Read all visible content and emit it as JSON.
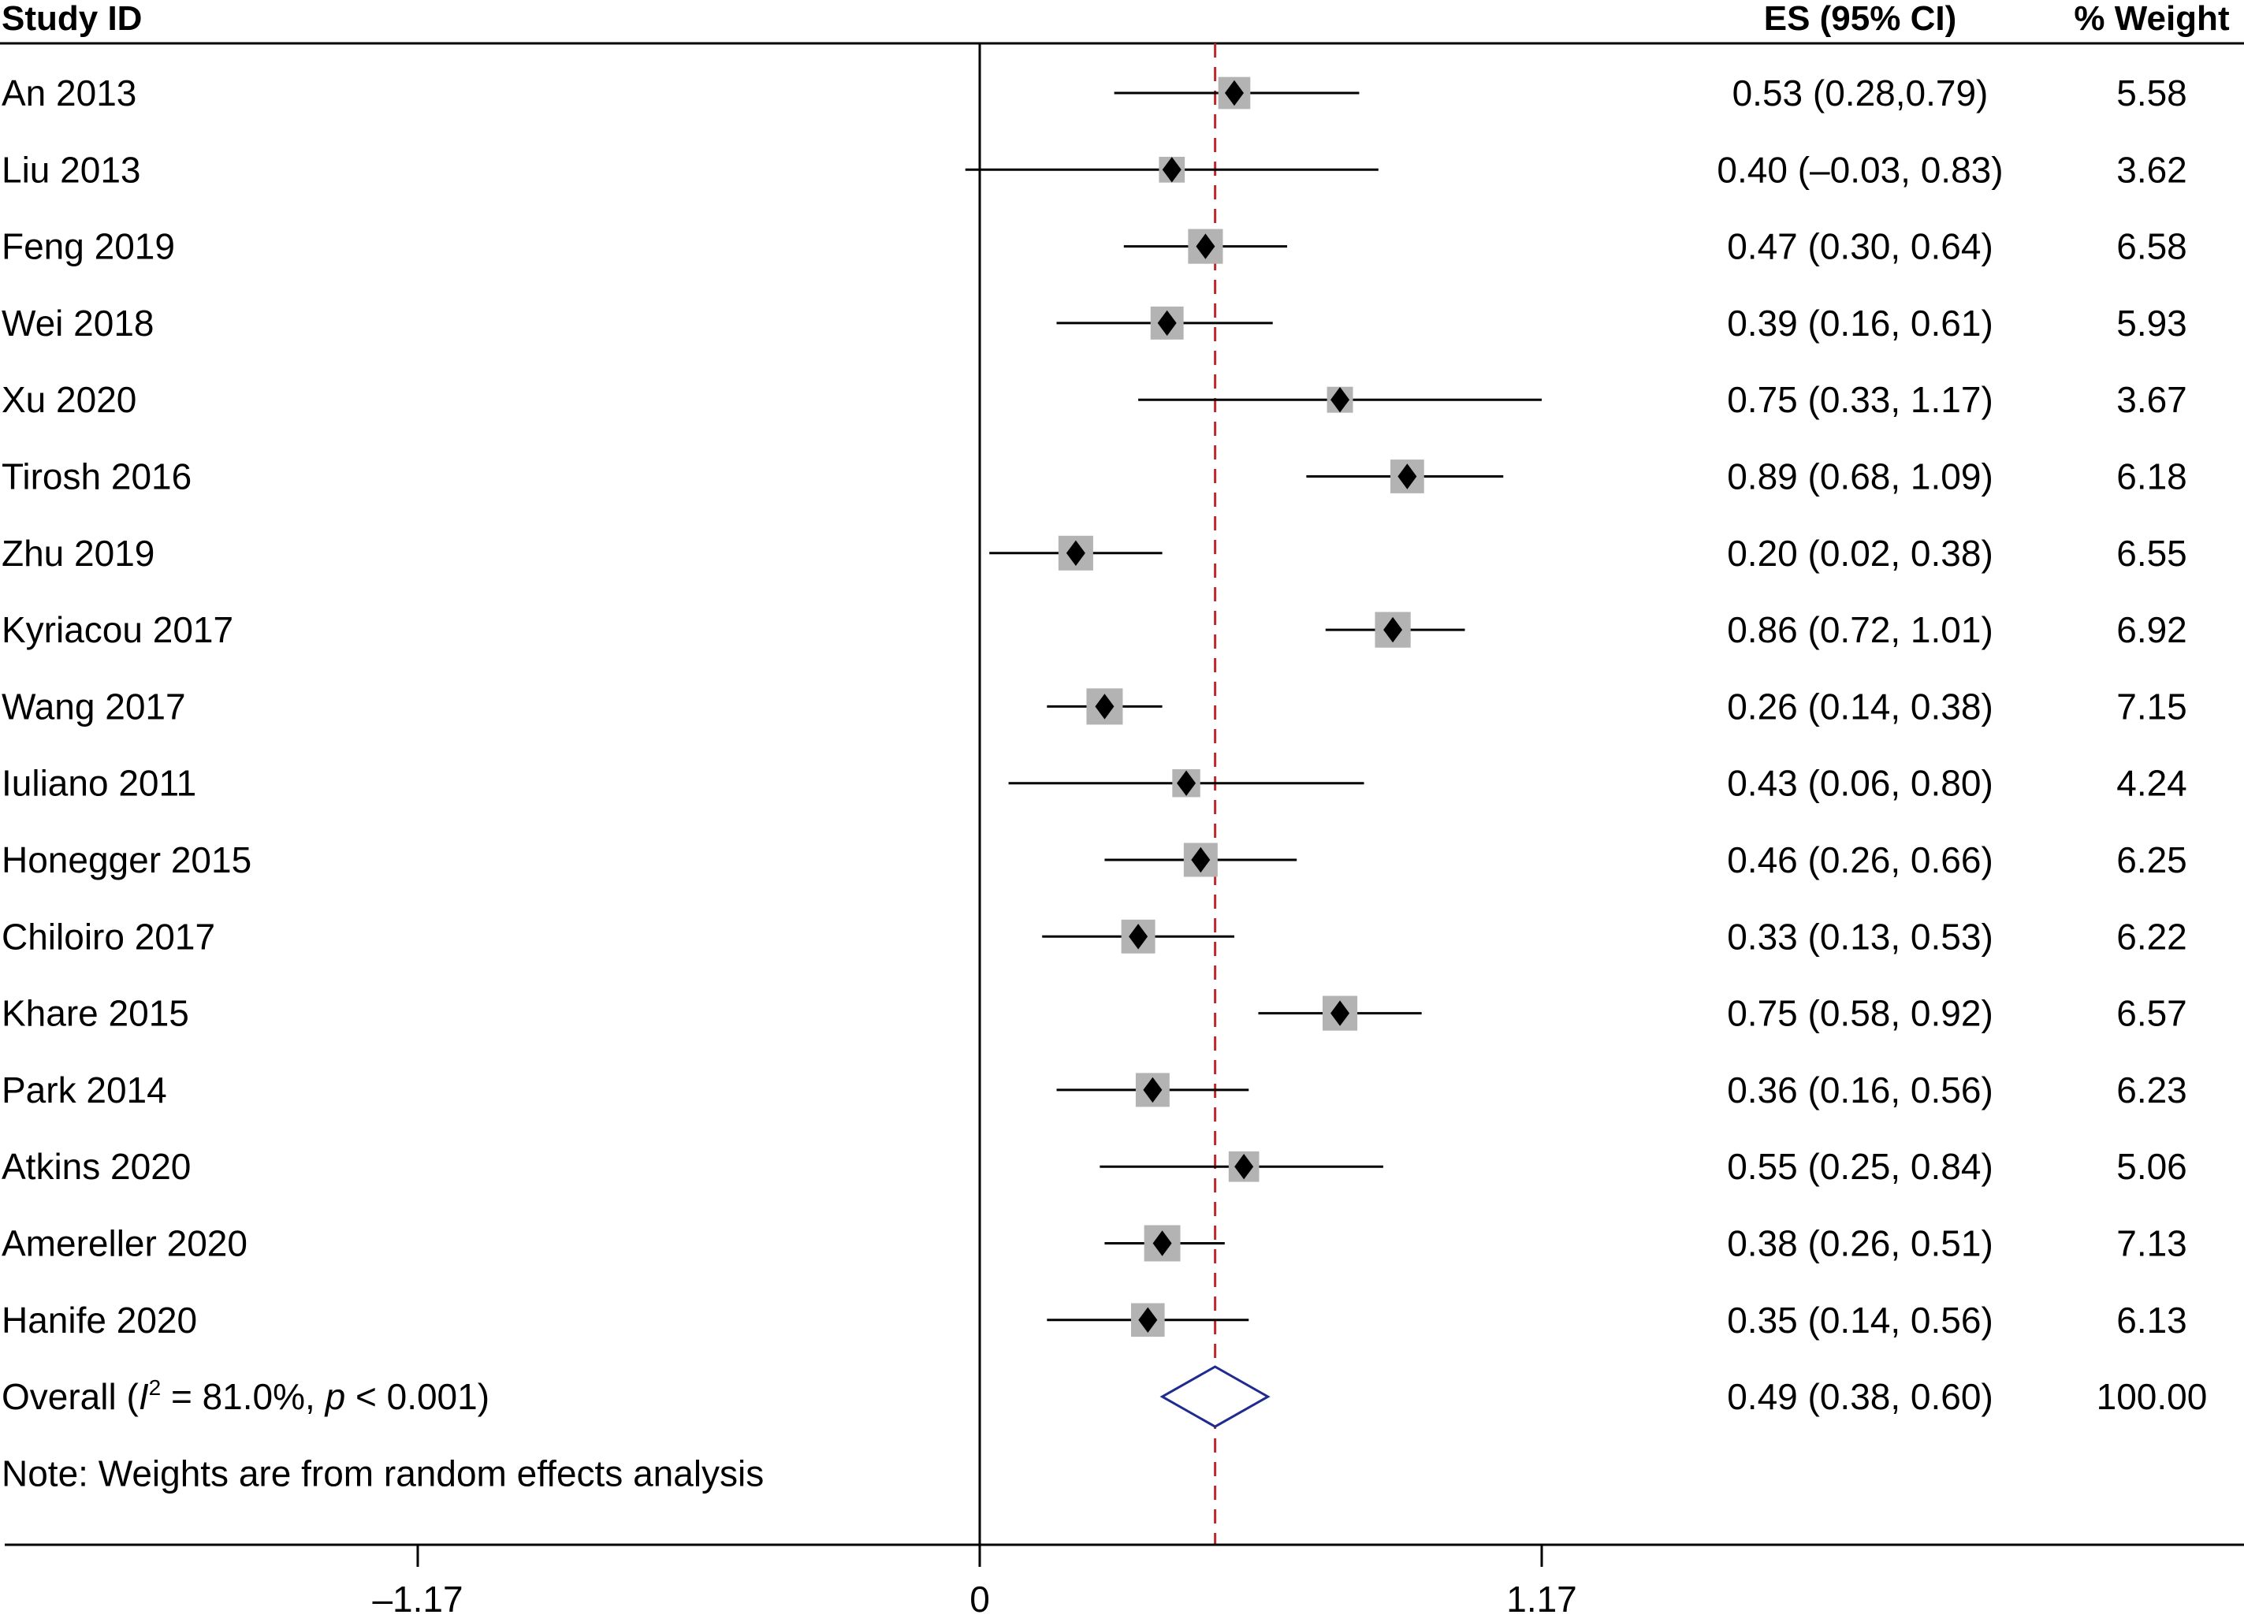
{
  "chart_data": {
    "type": "forest",
    "headers": {
      "study": "Study ID",
      "es": "ES (95% CI)",
      "weight": "% Weight"
    },
    "studies": [
      {
        "label": "An 2013",
        "es": 0.53,
        "lo": 0.28,
        "hi": 0.79,
        "ci_text": "0.53 (0.28,0.79)",
        "weight": 5.58,
        "weight_text": "5.58"
      },
      {
        "label": "Liu 2013",
        "es": 0.4,
        "lo": -0.03,
        "hi": 0.83,
        "ci_text": "0.40 (–0.03, 0.83)",
        "weight": 3.62,
        "weight_text": "3.62"
      },
      {
        "label": "Feng 2019",
        "es": 0.47,
        "lo": 0.3,
        "hi": 0.64,
        "ci_text": "0.47 (0.30, 0.64)",
        "weight": 6.58,
        "weight_text": "6.58"
      },
      {
        "label": "Wei 2018",
        "es": 0.39,
        "lo": 0.16,
        "hi": 0.61,
        "ci_text": "0.39 (0.16, 0.61)",
        "weight": 5.93,
        "weight_text": "5.93"
      },
      {
        "label": "Xu 2020",
        "es": 0.75,
        "lo": 0.33,
        "hi": 1.17,
        "ci_text": "0.75 (0.33, 1.17)",
        "weight": 3.67,
        "weight_text": "3.67"
      },
      {
        "label": "Tirosh 2016",
        "es": 0.89,
        "lo": 0.68,
        "hi": 1.09,
        "ci_text": "0.89 (0.68, 1.09)",
        "weight": 6.18,
        "weight_text": "6.18"
      },
      {
        "label": "Zhu 2019",
        "es": 0.2,
        "lo": 0.02,
        "hi": 0.38,
        "ci_text": "0.20 (0.02, 0.38)",
        "weight": 6.55,
        "weight_text": "6.55"
      },
      {
        "label": "Kyriacou 2017",
        "es": 0.86,
        "lo": 0.72,
        "hi": 1.01,
        "ci_text": "0.86 (0.72, 1.01)",
        "weight": 6.92,
        "weight_text": "6.92"
      },
      {
        "label": "Wang 2017",
        "es": 0.26,
        "lo": 0.14,
        "hi": 0.38,
        "ci_text": "0.26 (0.14, 0.38)",
        "weight": 7.15,
        "weight_text": "7.15"
      },
      {
        "label": "Iuliano 2011",
        "es": 0.43,
        "lo": 0.06,
        "hi": 0.8,
        "ci_text": "0.43 (0.06, 0.80)",
        "weight": 4.24,
        "weight_text": "4.24"
      },
      {
        "label": "Honegger 2015",
        "es": 0.46,
        "lo": 0.26,
        "hi": 0.66,
        "ci_text": "0.46 (0.26, 0.66)",
        "weight": 6.25,
        "weight_text": "6.25"
      },
      {
        "label": "Chiloiro 2017",
        "es": 0.33,
        "lo": 0.13,
        "hi": 0.53,
        "ci_text": "0.33 (0.13, 0.53)",
        "weight": 6.22,
        "weight_text": "6.22"
      },
      {
        "label": "Khare 2015",
        "es": 0.75,
        "lo": 0.58,
        "hi": 0.92,
        "ci_text": "0.75 (0.58, 0.92)",
        "weight": 6.57,
        "weight_text": "6.57"
      },
      {
        "label": "Park 2014",
        "es": 0.36,
        "lo": 0.16,
        "hi": 0.56,
        "ci_text": "0.36 (0.16, 0.56)",
        "weight": 6.23,
        "weight_text": "6.23"
      },
      {
        "label": "Atkins 2020",
        "es": 0.55,
        "lo": 0.25,
        "hi": 0.84,
        "ci_text": "0.55 (0.25, 0.84)",
        "weight": 5.06,
        "weight_text": "5.06"
      },
      {
        "label": "Amereller 2020",
        "es": 0.38,
        "lo": 0.26,
        "hi": 0.51,
        "ci_text": "0.38 (0.26, 0.51)",
        "weight": 7.13,
        "weight_text": "7.13"
      },
      {
        "label": "Hanife 2020",
        "es": 0.35,
        "lo": 0.14,
        "hi": 0.56,
        "ci_text": "0.35 (0.14, 0.56)",
        "weight": 6.13,
        "weight_text": "6.13"
      }
    ],
    "overall": {
      "label_prefix": "Overall (",
      "i2_symbol": "I",
      "i2_exp": "2",
      "i2_value": " = 81.0%, ",
      "p_symbol": "p",
      "p_value": " < 0.001)",
      "es": 0.49,
      "lo": 0.38,
      "hi": 0.6,
      "ci_text": "0.49 (0.38, 0.60)",
      "weight_text": "100.00"
    },
    "note": "Note: Weights are from random effects analysis",
    "x_axis": {
      "ticks": [
        -1.17,
        0,
        1.17
      ],
      "tick_labels": [
        "–1.17",
        "0",
        "1.17"
      ],
      "range": [
        -2.03,
        2.58
      ]
    },
    "reference_line": 0,
    "overall_line": 0.49,
    "colors": {
      "box": "#b3b3b3",
      "point": "#000000",
      "ci_line": "#000000",
      "overall_diamond": "#1f2b8f",
      "overall_line": "#c1272d"
    }
  }
}
